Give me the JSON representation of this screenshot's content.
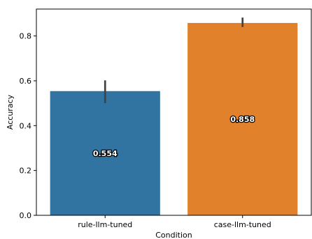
{
  "chart_data": {
    "type": "bar",
    "xlabel": "Condition",
    "ylabel": "Accuracy",
    "ylim": [
      0,
      0.92
    ],
    "yticks": [
      0.0,
      0.2,
      0.4,
      0.6,
      0.8
    ],
    "ytick_labels": [
      "0.0",
      "0.2",
      "0.4",
      "0.6",
      "0.8"
    ],
    "grid": false,
    "bars": [
      {
        "category": "rule-llm-tuned",
        "value": 0.554,
        "value_label": "0.554",
        "ci": [
          0.5,
          0.602
        ],
        "color": "#3274a1"
      },
      {
        "category": "case-llm-tuned",
        "value": 0.858,
        "value_label": "0.858",
        "ci": [
          0.84,
          0.882
        ],
        "color": "#e1812c"
      }
    ],
    "errorbar_color": "#424242"
  }
}
